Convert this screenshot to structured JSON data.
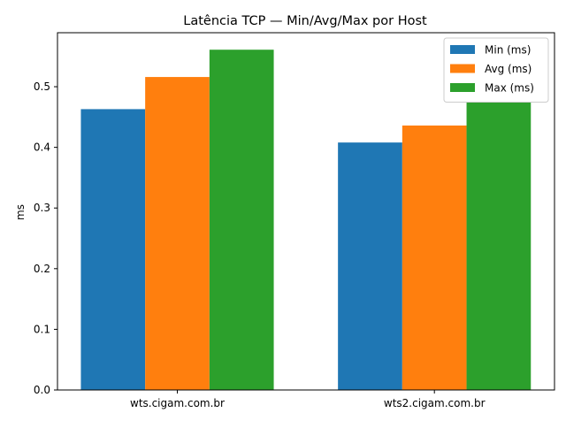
{
  "chart_data": {
    "type": "bar",
    "title": "Latência TCP — Min/Avg/Max por Host",
    "xlabel": "",
    "ylabel": "ms",
    "categories": [
      "wts.cigam.com.br",
      "wts2.cigam.com.br"
    ],
    "series": [
      {
        "name": "Min (ms)",
        "color": "#1f77b4",
        "values": [
          0.463,
          0.408
        ]
      },
      {
        "name": "Avg (ms)",
        "color": "#ff7f0e",
        "values": [
          0.516,
          0.436
        ]
      },
      {
        "name": "Max (ms)",
        "color": "#2ca02c",
        "values": [
          0.561,
          0.474
        ]
      }
    ],
    "ylim": [
      0,
      0.589
    ],
    "yticks": [
      "0.0",
      "0.1",
      "0.2",
      "0.3",
      "0.4",
      "0.5"
    ],
    "grid": false,
    "legend_position": "top-right"
  }
}
